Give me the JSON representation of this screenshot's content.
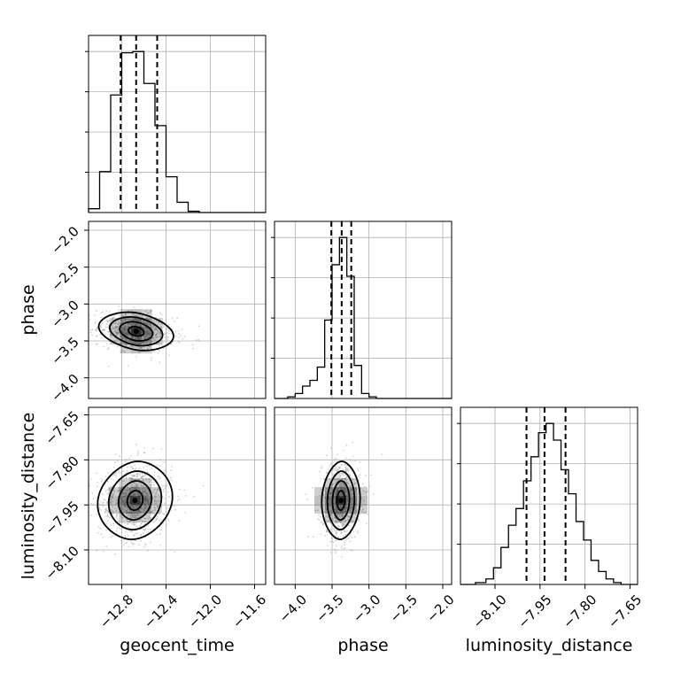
{
  "chart_data": {
    "type": "corner",
    "grid": true,
    "colors": {
      "line": "#000000",
      "grid": "#b0b0b0",
      "samples": "#9a9a9a",
      "fill": "#000000"
    },
    "parameters": [
      {
        "name": "geocent_time",
        "label": "geocent_time",
        "range": [
          -13.1,
          -11.5
        ],
        "ticks": [
          -12.8,
          -12.4,
          -12.0,
          -11.6
        ],
        "tick_labels": [
          "−12.8",
          "−12.4",
          "−12.0",
          "−11.6"
        ],
        "quantiles": [
          -12.81,
          -12.67,
          -12.48
        ],
        "median": -12.67,
        "std": 0.13
      },
      {
        "name": "phase",
        "label": "phase",
        "range": [
          -4.28,
          -1.88
        ],
        "ticks": [
          -4.0,
          -3.5,
          -3.0,
          -2.5,
          -2.0
        ],
        "tick_labels": [
          "−4.0",
          "−3.5",
          "−3.0",
          "−2.5",
          "−2.0"
        ],
        "quantiles": [
          -3.51,
          -3.37,
          -3.24
        ],
        "median": -3.37,
        "std": 0.13
      },
      {
        "name": "luminosity_distance",
        "label": "luminosity_distance",
        "range": [
          -8.215,
          -7.625
        ],
        "ticks": [
          -8.1,
          -7.95,
          -7.8,
          -7.65
        ],
        "tick_labels": [
          "−8.10",
          "−7.95",
          "−7.80",
          "−7.65"
        ],
        "quantiles": [
          -7.995,
          -7.935,
          -7.865
        ],
        "median": -7.935,
        "std": 0.065
      }
    ],
    "histograms": [
      {
        "param": "geocent_time",
        "bin_edges": [
          -13.1,
          -13.0,
          -12.9,
          -12.8,
          -12.7,
          -12.6,
          -12.5,
          -12.4,
          -12.3,
          -12.2,
          -12.1
        ],
        "counts": [
          3,
          32,
          92,
          125,
          126,
          101,
          68,
          28,
          8,
          1
        ]
      },
      {
        "param": "phase",
        "bin_edges": [
          -4.1,
          -4.0,
          -3.9,
          -3.8,
          -3.7,
          -3.6,
          -3.5,
          -3.4,
          -3.3,
          -3.2,
          -3.1,
          -3.0,
          -2.9
        ],
        "counts": [
          2,
          6,
          15,
          22,
          38,
          95,
          162,
          195,
          148,
          40,
          6,
          2
        ]
      },
      {
        "param": "luminosity_distance",
        "bin_edges": [
          -8.165,
          -8.13,
          -8.105,
          -8.08,
          -8.055,
          -8.03,
          -8.005,
          -7.98,
          -7.955,
          -7.93,
          -7.905,
          -7.88,
          -7.855,
          -7.83,
          -7.805,
          -7.78,
          -7.755,
          -7.73,
          -7.705,
          -7.68
        ],
        "counts": [
          1,
          3,
          9,
          20,
          32,
          41,
          56,
          69,
          82,
          87,
          78,
          62,
          49,
          34,
          24,
          13,
          7,
          3,
          1
        ]
      }
    ],
    "pairs": [
      {
        "x": "geocent_time",
        "y": "phase",
        "x_center": -12.67,
        "y_center": -3.37,
        "x_std": 0.13,
        "y_std": 0.13,
        "correlation": -0.25,
        "contour_levels_sigma": [
          0.5,
          1.0,
          1.5,
          2.0
        ]
      },
      {
        "x": "geocent_time",
        "y": "luminosity_distance",
        "x_center": -12.68,
        "y_center": -7.935,
        "x_std": 0.13,
        "y_std": 0.065,
        "correlation": 0.1,
        "contour_levels_sigma": [
          0.5,
          1.0,
          1.5,
          2.0
        ]
      },
      {
        "x": "phase",
        "y": "luminosity_distance",
        "x_center": -3.38,
        "y_center": -7.935,
        "x_std": 0.1,
        "y_std": 0.065,
        "correlation": 0.05,
        "contour_levels_sigma": [
          0.5,
          1.0,
          1.5,
          2.0
        ]
      }
    ]
  }
}
